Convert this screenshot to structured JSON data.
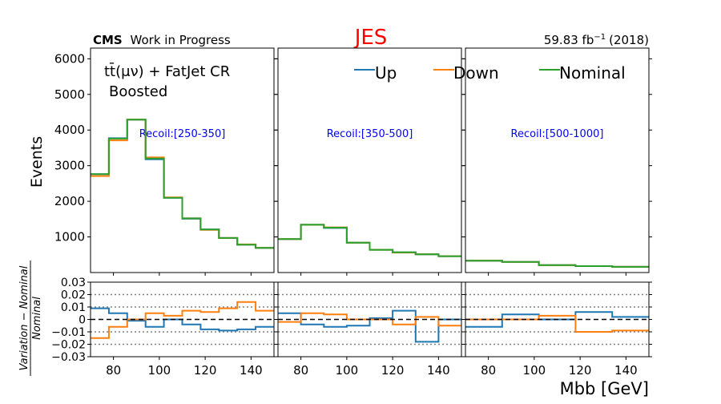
{
  "header": {
    "title": "JES",
    "title_color": "#ff0000",
    "experiment": "CMS",
    "experiment_suffix": "Work in Progress",
    "lumi_value": "59.83 fb",
    "lumi_exp": "−1",
    "lumi_year": "(2018)"
  },
  "annotation": {
    "line1": "tt̄(μν) + FatJet CR",
    "line2": "Boosted"
  },
  "axes": {
    "ylabel_top": "Events",
    "ylabel_bottom_num": "Variation − Nominal",
    "ylabel_bottom_den": "Nominal",
    "xlabel": "Mbb [GeV]"
  },
  "colors": {
    "Up": "#1f77b4",
    "Down": "#ff7f0e",
    "Nominal": "#2ca02c",
    "recoil_label": "#0000ff"
  },
  "chart_data": [
    {
      "type": "line",
      "panel": "main",
      "label": "Recoil:[250-350]",
      "bin_edges": [
        70,
        78,
        86,
        94,
        102,
        110,
        118,
        126,
        134,
        142,
        150
      ],
      "ylim": [
        0,
        6300
      ],
      "yticks": [
        1000,
        2000,
        3000,
        4000,
        5000,
        6000
      ],
      "xlim": [
        70,
        150
      ],
      "series": [
        {
          "name": "Up",
          "values": [
            2760,
            3770,
            4290,
            3180,
            2100,
            1510,
            1210,
            970,
            780,
            690
          ]
        },
        {
          "name": "Down",
          "values": [
            2710,
            3710,
            4290,
            3230,
            2110,
            1520,
            1200,
            970,
            790,
            690
          ]
        },
        {
          "name": "Nominal",
          "values": [
            2760,
            3760,
            4290,
            3200,
            2100,
            1520,
            1210,
            970,
            780,
            690
          ]
        }
      ]
    },
    {
      "type": "line",
      "panel": "main",
      "label": "Recoil:[350-500]",
      "bin_edges": [
        70,
        80,
        90,
        100,
        110,
        120,
        130,
        140,
        150
      ],
      "ylim": [
        0,
        6300
      ],
      "xlim": [
        70,
        150
      ],
      "series": [
        {
          "name": "Up",
          "values": [
            940,
            1340,
            1250,
            840,
            640,
            570,
            510,
            460
          ]
        },
        {
          "name": "Down",
          "values": [
            940,
            1340,
            1270,
            840,
            640,
            560,
            510,
            460
          ]
        },
        {
          "name": "Nominal",
          "values": [
            940,
            1340,
            1260,
            840,
            640,
            570,
            510,
            460
          ]
        }
      ]
    },
    {
      "type": "line",
      "panel": "main",
      "label": "Recoil:[500-1000]",
      "bin_edges": [
        70,
        86,
        102,
        118,
        134,
        150
      ],
      "ylim": [
        0,
        6300
      ],
      "xlim": [
        70,
        150
      ],
      "series": [
        {
          "name": "Up",
          "values": [
            330,
            300,
            210,
            180,
            160
          ]
        },
        {
          "name": "Down",
          "values": [
            330,
            300,
            210,
            180,
            160
          ]
        },
        {
          "name": "Nominal",
          "values": [
            330,
            300,
            210,
            180,
            160
          ]
        }
      ]
    },
    {
      "type": "line",
      "panel": "ratio",
      "bin_edges": [
        70,
        78,
        86,
        94,
        102,
        110,
        118,
        126,
        134,
        142,
        150
      ],
      "ylim": [
        -0.03,
        0.03
      ],
      "yticks": [
        -0.03,
        -0.02,
        -0.01,
        0,
        0.01,
        0.02,
        0.03
      ],
      "ytick_labels": [
        "−0.03",
        "−0.02",
        "−0.01",
        "0",
        "0.01",
        "0.02",
        "0.03"
      ],
      "xticks": [
        80,
        100,
        120,
        140
      ],
      "xlim": [
        70,
        150
      ],
      "series": [
        {
          "name": "Up",
          "values": [
            0.009,
            0.005,
            -0.001,
            -0.006,
            0.0,
            -0.004,
            -0.008,
            -0.009,
            -0.008,
            -0.006
          ]
        },
        {
          "name": "Down",
          "values": [
            -0.015,
            -0.006,
            0.0,
            0.005,
            0.003,
            0.007,
            0.006,
            0.009,
            0.014,
            0.007
          ]
        }
      ]
    },
    {
      "type": "line",
      "panel": "ratio",
      "bin_edges": [
        70,
        80,
        90,
        100,
        110,
        120,
        130,
        140,
        150
      ],
      "ylim": [
        -0.03,
        0.03
      ],
      "xticks": [
        80,
        100,
        120,
        140
      ],
      "xlim": [
        70,
        150
      ],
      "series": [
        {
          "name": "Up",
          "values": [
            0.005,
            -0.004,
            -0.006,
            -0.005,
            0.001,
            0.007,
            -0.018,
            0.0
          ]
        },
        {
          "name": "Down",
          "values": [
            -0.002,
            0.005,
            0.004,
            0.0,
            0.0,
            -0.004,
            0.002,
            -0.005
          ]
        }
      ]
    },
    {
      "type": "line",
      "panel": "ratio",
      "bin_edges": [
        70,
        86,
        102,
        118,
        134,
        150
      ],
      "ylim": [
        -0.03,
        0.03
      ],
      "xticks": [
        80,
        100,
        120,
        140
      ],
      "xlim": [
        70,
        150
      ],
      "series": [
        {
          "name": "Up",
          "values": [
            -0.006,
            0.004,
            0.0,
            0.006,
            0.002
          ]
        },
        {
          "name": "Down",
          "values": [
            0.0,
            0.0,
            0.003,
            -0.01,
            -0.009
          ]
        }
      ]
    }
  ]
}
